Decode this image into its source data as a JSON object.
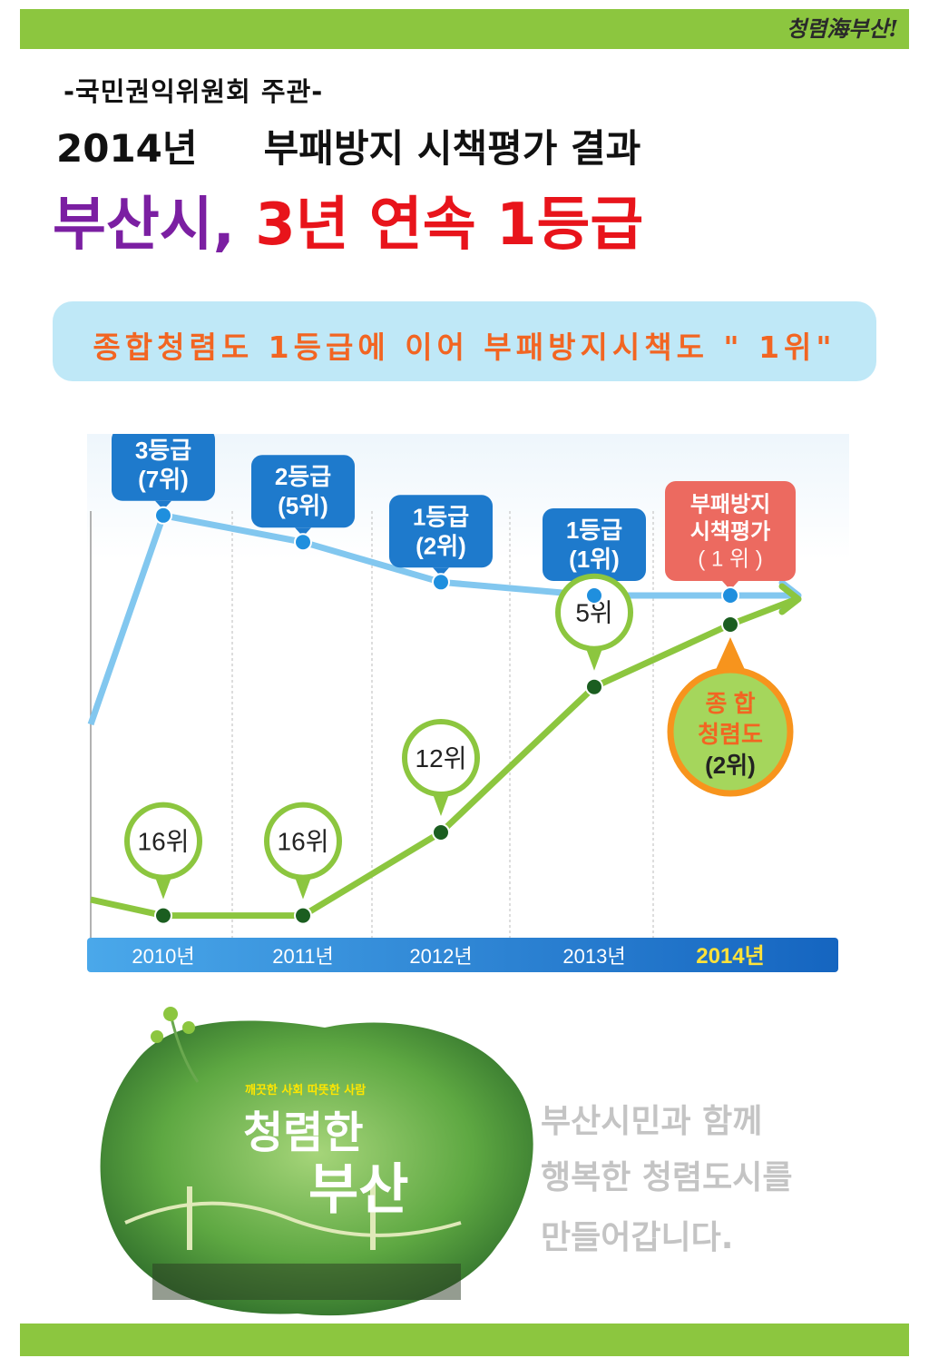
{
  "header": {
    "logo": "청렴海부산!",
    "organizer": "-국민권익위원회 주관-",
    "year": "2014년",
    "subject": "부패방지 시책평가 결과",
    "title_city": "부산시,",
    "title_rest": "3년 연속 1등급"
  },
  "banner": {
    "text": "종합청렴도 1등급에 이어 부패방지시책도 \" 1위\""
  },
  "chart_data": {
    "type": "line",
    "categories": [
      "2010년",
      "2011년",
      "2012년",
      "2013년",
      "2014년"
    ],
    "highlight_category": "2014년",
    "series": [
      {
        "color": "#82c7ef",
        "marker_color": "#1f8fde",
        "ranks": [
          7,
          5,
          2,
          1,
          1
        ],
        "labels": [
          [
            "3등급",
            "(7위)"
          ],
          [
            "2등급",
            "(5위)"
          ],
          [
            "1등급",
            "(2위)"
          ],
          [
            "1등급",
            "(1위)"
          ],
          [
            "부패방지",
            "시책평가",
            "( 1 위 )"
          ]
        ]
      },
      {
        "color": "#8cc63f",
        "marker_color": "#1b5e20",
        "ranks": [
          16,
          16,
          12,
          5,
          2
        ],
        "labels": [
          [
            "16위"
          ],
          [
            "16위"
          ],
          [
            "12위"
          ],
          [
            "5위"
          ],
          [
            "종  합",
            "청렴도",
            "(2위)"
          ]
        ]
      }
    ],
    "grid": "vertical dashed",
    "axis_bar_color": "#1f7fcf"
  },
  "promo": {
    "slogan_small": "깨끗한 사회 따뜻한 사람",
    "slogan_line1": "청렴한",
    "slogan_line2": "부산",
    "message": [
      "부산시민과 함께",
      "행복한 청렴도시를",
      "만들어갑니다."
    ]
  }
}
